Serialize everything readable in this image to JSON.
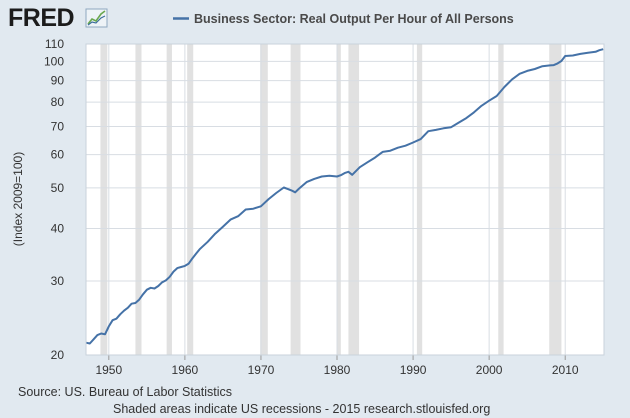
{
  "header": {
    "logo_text": "FRED",
    "logo_icon": "sparkline-chart-icon"
  },
  "chart_data": {
    "type": "line",
    "title": "Business Sector: Real Output Per Hour of All Persons",
    "ylabel": "(Index 2009=100)",
    "xlabel": "",
    "yscale": "log",
    "xlim": [
      1947,
      2015.1
    ],
    "ylim": [
      20,
      110
    ],
    "x_ticks": [
      1950,
      1960,
      1970,
      1980,
      1990,
      2000,
      2010
    ],
    "y_ticks": [
      20,
      30,
      40,
      50,
      60,
      70,
      80,
      90,
      100,
      110
    ],
    "grid": true,
    "legend_position": "top",
    "series": [
      {
        "name": "Business Sector: Real Output Per Hour of All Persons",
        "color": "#4572a7",
        "x": [
          1947.0,
          1947.5,
          1948.0,
          1948.5,
          1949.0,
          1949.5,
          1950.0,
          1950.5,
          1951.0,
          1951.5,
          1952.0,
          1952.5,
          1953.0,
          1953.5,
          1954.0,
          1954.5,
          1955.0,
          1955.5,
          1956.0,
          1956.5,
          1957.0,
          1957.5,
          1958.0,
          1958.5,
          1959.0,
          1959.5,
          1960.0,
          1960.5,
          1961.0,
          1961.5,
          1962.0,
          1963.0,
          1964.0,
          1965.0,
          1966.0,
          1967.0,
          1968.0,
          1969.0,
          1970.0,
          1971.0,
          1972.0,
          1973.0,
          1973.5,
          1974.0,
          1974.5,
          1975.0,
          1976.0,
          1977.0,
          1978.0,
          1979.0,
          1980.0,
          1980.5,
          1981.0,
          1981.5,
          1982.0,
          1983.0,
          1984.0,
          1985.0,
          1986.0,
          1987.0,
          1988.0,
          1989.0,
          1990.0,
          1991.0,
          1992.0,
          1993.0,
          1994.0,
          1995.0,
          1996.0,
          1997.0,
          1998.0,
          1999.0,
          2000.0,
          2001.0,
          2002.0,
          2003.0,
          2004.0,
          2005.0,
          2006.0,
          2007.0,
          2008.0,
          2008.5,
          2009.0,
          2009.5,
          2010.0,
          2011.0,
          2012.0,
          2013.0,
          2014.0,
          2014.5,
          2015.0
        ],
        "values": [
          21.4,
          21.3,
          21.8,
          22.3,
          22.5,
          22.4,
          23.4,
          24.2,
          24.4,
          25.0,
          25.5,
          25.9,
          26.5,
          26.6,
          27.1,
          27.9,
          28.6,
          28.9,
          28.8,
          29.2,
          29.8,
          30.1,
          30.7,
          31.6,
          32.2,
          32.4,
          32.6,
          33.0,
          34.0,
          34.9,
          35.8,
          37.2,
          38.9,
          40.4,
          42.0,
          42.8,
          44.4,
          44.6,
          45.2,
          47.0,
          48.6,
          50.1,
          49.7,
          49.3,
          48.8,
          49.8,
          51.6,
          52.5,
          53.2,
          53.4,
          53.2,
          53.6,
          54.2,
          54.6,
          53.7,
          56.0,
          57.5,
          59.0,
          60.9,
          61.3,
          62.3,
          63.0,
          64.1,
          65.3,
          68.2,
          68.7,
          69.3,
          69.7,
          71.5,
          73.3,
          75.6,
          78.4,
          80.6,
          82.7,
          86.9,
          90.6,
          93.4,
          94.9,
          95.9,
          97.4,
          97.8,
          98.0,
          98.9,
          100.2,
          103.0,
          103.3,
          104.2,
          104.8,
          105.4,
          106.3,
          106.9
        ]
      }
    ],
    "recessions": [
      [
        1948.9,
        1949.8
      ],
      [
        1953.5,
        1954.3
      ],
      [
        1957.6,
        1958.3
      ],
      [
        1960.3,
        1961.1
      ],
      [
        1969.9,
        1970.9
      ],
      [
        1973.9,
        1975.2
      ],
      [
        1980.0,
        1980.5
      ],
      [
        1981.5,
        1982.9
      ],
      [
        1990.5,
        1991.2
      ],
      [
        2001.2,
        2001.9
      ],
      [
        2007.9,
        2009.5
      ]
    ]
  },
  "footer": {
    "source": "Source: US. Bureau of Labor Statistics",
    "note": "Shaded areas indicate US recessions - 2015 research.stlouisfed.org"
  }
}
